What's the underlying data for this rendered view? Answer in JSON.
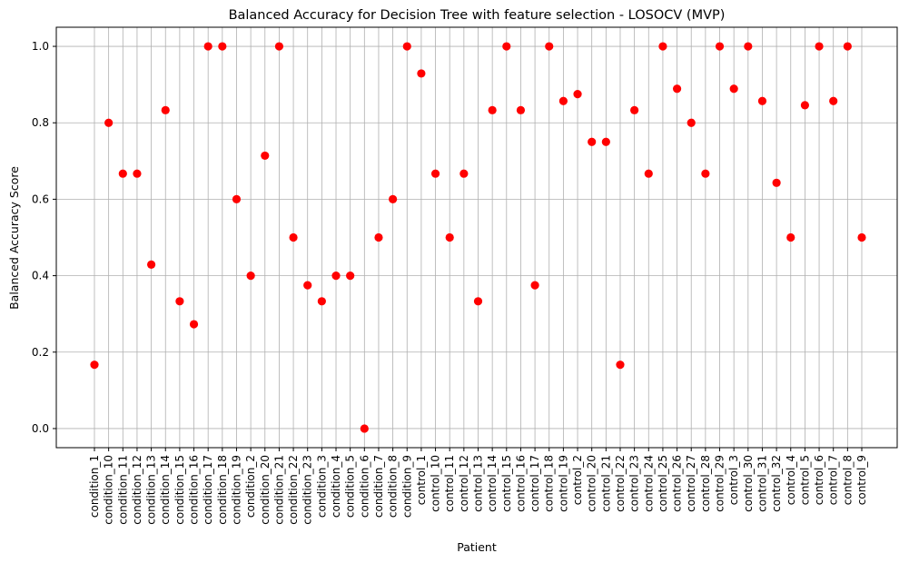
{
  "chart_data": {
    "type": "scatter",
    "title": "Balanced Accuracy for Decision Tree with feature selection - LOSOCV (MVP)",
    "xlabel": "Patient",
    "ylabel": "Balanced Accuracy Score",
    "ylim": [
      -0.05,
      1.05
    ],
    "yticks": [
      "0.0",
      "0.2",
      "0.4",
      "0.6",
      "0.8",
      "1.0"
    ],
    "grid": true,
    "marker_color": "#ff0000",
    "categories": [
      "condition_1",
      "condition_10",
      "condition_11",
      "condition_12",
      "condition_13",
      "condition_14",
      "condition_15",
      "condition_16",
      "condition_17",
      "condition_18",
      "condition_19",
      "condition_2",
      "condition_20",
      "condition_21",
      "condition_22",
      "condition_23",
      "condition_3",
      "condition_4",
      "condition_5",
      "condition_6",
      "condition_7",
      "condition_8",
      "condition_9",
      "control_1",
      "control_10",
      "control_11",
      "control_12",
      "control_13",
      "control_14",
      "control_15",
      "control_16",
      "control_17",
      "control_18",
      "control_19",
      "control_2",
      "control_20",
      "control_21",
      "control_22",
      "control_23",
      "control_24",
      "control_25",
      "control_26",
      "control_27",
      "control_28",
      "control_29",
      "control_3",
      "control_30",
      "control_31",
      "control_32",
      "control_4",
      "control_5",
      "control_6",
      "control_7",
      "control_8",
      "control_9"
    ],
    "values": [
      0.167,
      0.8,
      0.667,
      0.667,
      0.429,
      0.833,
      0.333,
      0.273,
      1.0,
      1.0,
      0.6,
      0.4,
      0.714,
      1.0,
      0.5,
      0.375,
      0.333,
      0.4,
      0.4,
      0.0,
      0.5,
      0.6,
      1.0,
      0.929,
      0.667,
      0.5,
      0.667,
      0.333,
      0.833,
      1.0,
      0.833,
      0.375,
      1.0,
      0.857,
      0.875,
      0.75,
      0.75,
      0.167,
      0.833,
      0.667,
      1.0,
      0.889,
      0.8,
      0.667,
      1.0,
      0.889,
      1.0,
      0.857,
      0.643,
      0.5,
      0.846,
      1.0,
      0.857,
      1.0,
      0.5
    ]
  }
}
